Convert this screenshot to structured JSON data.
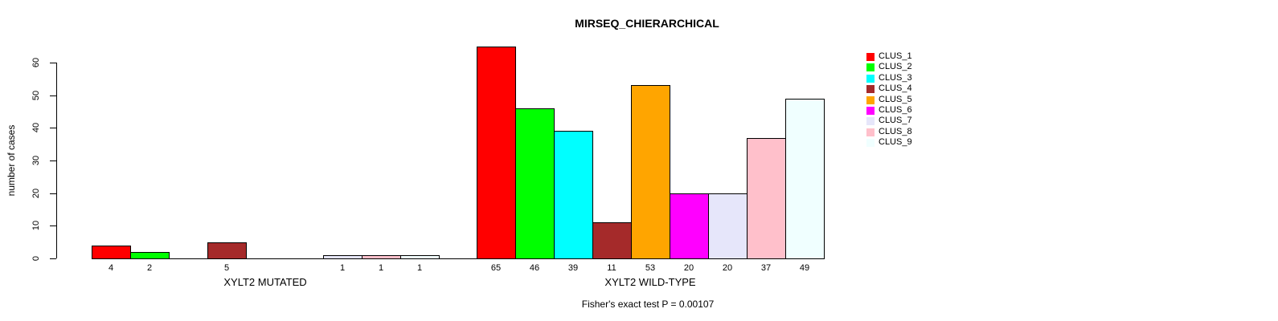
{
  "chart_data": {
    "type": "bar",
    "title": "MIRSEQ_CHIERARCHICAL",
    "ylabel": "number of cases",
    "ylim": [
      0,
      60
    ],
    "yticks": [
      0,
      10,
      20,
      30,
      40,
      50,
      60
    ],
    "grid": false,
    "legend_position": "right",
    "bar_outline_color": "#000000",
    "clusters": [
      {
        "name": "CLUS_1",
        "color": "#FF0000"
      },
      {
        "name": "CLUS_2",
        "color": "#00FF00"
      },
      {
        "name": "CLUS_3",
        "color": "#00FFFF"
      },
      {
        "name": "CLUS_4",
        "color": "#A52A2A"
      },
      {
        "name": "CLUS_5",
        "color": "#FFA500"
      },
      {
        "name": "CLUS_6",
        "color": "#FF00FF"
      },
      {
        "name": "CLUS_7",
        "color": "#E6E6FA"
      },
      {
        "name": "CLUS_8",
        "color": "#FFC0CB"
      },
      {
        "name": "CLUS_9",
        "color": "#F0FFFF"
      }
    ],
    "groups": [
      {
        "label": "XYLT2 MUTATED",
        "values": [
          4,
          2,
          0,
          5,
          0,
          0,
          1,
          1,
          1
        ]
      },
      {
        "label": "XYLT2 WILD-TYPE",
        "values": [
          65,
          46,
          39,
          11,
          53,
          20,
          20,
          37,
          49
        ]
      }
    ],
    "note": "Fisher's exact test P = 0.00107"
  }
}
